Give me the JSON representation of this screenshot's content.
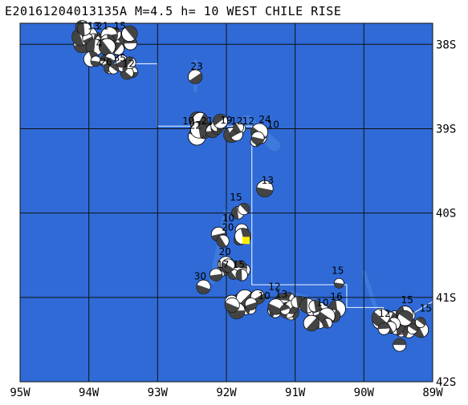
{
  "header": "E20161204013135A M=4.5 h= 10 WEST CHILE RISE",
  "colors": {
    "ocean": "#2f6ad6",
    "ocean_light": "#4b86e2",
    "grid": "#111111",
    "ridge": "#d8e6ff",
    "event": "#ffee00",
    "beach_dark": "#444444",
    "beach_light": "#ffffff"
  },
  "axes": {
    "lon_labels": [
      "95W",
      "94W",
      "93W",
      "92W",
      "91W",
      "90W",
      "89W"
    ],
    "lat_labels": [
      "38S",
      "39S",
      "40S",
      "41S",
      "42S"
    ]
  },
  "labels": [
    {
      "text": "13",
      "lon": -93.93,
      "lat": -37.82
    },
    {
      "text": "21",
      "lon": -93.8,
      "lat": -37.82
    },
    {
      "text": "15",
      "lon": -93.55,
      "lat": -37.82
    },
    {
      "text": "4",
      "lon": -93.85,
      "lat": -38.03
    },
    {
      "text": "26",
      "lon": -93.75,
      "lat": -38.25
    },
    {
      "text": "35",
      "lon": -93.55,
      "lat": -38.2
    },
    {
      "text": "12",
      "lon": -93.42,
      "lat": -38.27
    },
    {
      "text": "23",
      "lon": -92.43,
      "lat": -38.3
    },
    {
      "text": "10",
      "lon": -92.55,
      "lat": -38.95
    },
    {
      "text": "22",
      "lon": -92.45,
      "lat": -39.0
    },
    {
      "text": "21",
      "lon": -92.28,
      "lat": -38.95
    },
    {
      "text": "19",
      "lon": -92.0,
      "lat": -38.94
    },
    {
      "text": "12",
      "lon": -91.85,
      "lat": -38.95
    },
    {
      "text": "12",
      "lon": -91.68,
      "lat": -38.95
    },
    {
      "text": "24",
      "lon": -91.44,
      "lat": -38.93
    },
    {
      "text": "10",
      "lon": -91.32,
      "lat": -38.99
    },
    {
      "text": "13",
      "lon": -91.4,
      "lat": -39.65
    },
    {
      "text": "15",
      "lon": -91.86,
      "lat": -39.85
    },
    {
      "text": "10",
      "lon": -91.97,
      "lat": -40.1
    },
    {
      "text": "20",
      "lon": -91.98,
      "lat": -40.21
    },
    {
      "text": "20",
      "lon": -92.02,
      "lat": -40.5
    },
    {
      "text": "17",
      "lon": -92.05,
      "lat": -40.65
    },
    {
      "text": "15",
      "lon": -91.82,
      "lat": -40.65
    },
    {
      "text": "30",
      "lon": -92.38,
      "lat": -40.79
    },
    {
      "text": "12",
      "lon": -91.3,
      "lat": -40.91
    },
    {
      "text": "13",
      "lon": -91.2,
      "lat": -41.0
    },
    {
      "text": "10",
      "lon": -91.45,
      "lat": -41.02
    },
    {
      "text": "15",
      "lon": -90.38,
      "lat": -40.72
    },
    {
      "text": "16",
      "lon": -90.4,
      "lat": -41.03
    },
    {
      "text": "10",
      "lon": -90.6,
      "lat": -41.1
    },
    {
      "text": "15",
      "lon": -89.37,
      "lat": -41.07
    },
    {
      "text": "12",
      "lon": -89.7,
      "lat": -41.23
    },
    {
      "text": "15",
      "lon": -89.1,
      "lat": -41.17
    }
  ]
}
